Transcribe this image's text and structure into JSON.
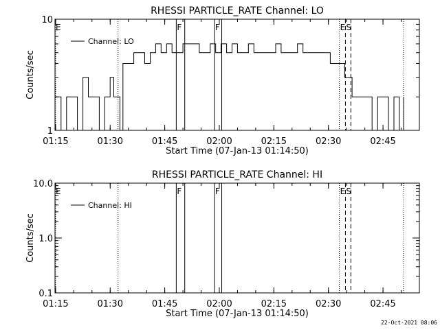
{
  "chart_data": [
    {
      "type": "line",
      "title": "RHESSI PARTICLE_RATE Channel: LO",
      "xlabel": "Start Time (07-Jan-13 01:14:50)",
      "ylabel": "Counts/sec",
      "yscale": "log",
      "ylim": [
        1,
        10
      ],
      "xlim": [
        "01:14:50",
        "02:55:00"
      ],
      "x_ticks": [
        "01:15",
        "01:30",
        "01:45",
        "02:00",
        "02:15",
        "02:30",
        "02:45"
      ],
      "y_ticks": [
        "1",
        "10"
      ],
      "legend": {
        "placement": "top-left",
        "entries": [
          "Channel: LO"
        ]
      },
      "grid": false,
      "markers": [
        {
          "time": "01:15:00",
          "style": "dotted",
          "label": "E"
        },
        {
          "time": "01:32:10",
          "style": "dotted",
          "label": ""
        },
        {
          "time": "01:48:10",
          "style": "solid",
          "label": "F"
        },
        {
          "time": "01:50:30",
          "style": "solid",
          "label": ""
        },
        {
          "time": "01:58:40",
          "style": "solid",
          "label": "F"
        },
        {
          "time": "02:00:40",
          "style": "solid",
          "label": ""
        },
        {
          "time": "02:33:00",
          "style": "dotted",
          "label": "E"
        },
        {
          "time": "02:34:40",
          "style": "dashed",
          "label": "S"
        },
        {
          "time": "02:36:10",
          "style": "dashed",
          "label": ""
        },
        {
          "time": "02:50:40",
          "style": "dotted",
          "label": ""
        }
      ],
      "series": [
        {
          "name": "Channel: LO",
          "x": [
            "01:14:50",
            "01:16:30",
            "01:18:00",
            "01:19:30",
            "01:21:00",
            "01:22:30",
            "01:24:00",
            "01:25:30",
            "01:27:00",
            "01:28:30",
            "01:30:00",
            "01:31:00",
            "01:32:00",
            "01:32:40",
            "01:33:30",
            "01:35:00",
            "01:36:30",
            "01:38:00",
            "01:39:30",
            "01:41:00",
            "01:42:30",
            "01:44:00",
            "01:45:30",
            "01:47:00",
            "01:48:30",
            "01:50:00",
            "01:51:30",
            "01:53:00",
            "01:54:30",
            "01:56:00",
            "01:57:30",
            "01:59:00",
            "02:00:30",
            "02:02:00",
            "02:03:30",
            "02:05:00",
            "02:06:30",
            "02:08:00",
            "02:09:30",
            "02:11:00",
            "02:12:30",
            "02:14:00",
            "02:15:30",
            "02:17:00",
            "02:18:30",
            "02:20:00",
            "02:21:30",
            "02:23:00",
            "02:24:30",
            "02:26:00",
            "02:27:30",
            "02:29:00",
            "02:30:30",
            "02:32:00",
            "02:33:30",
            "02:34:30",
            "02:35:30",
            "02:36:30",
            "02:37:30",
            "02:39:00",
            "02:40:30",
            "02:42:00",
            "02:43:30",
            "02:45:00",
            "02:46:30",
            "02:48:00",
            "02:49:30",
            "02:50:40"
          ],
          "values": [
            2,
            1,
            2,
            2,
            1,
            3,
            2,
            2,
            1,
            2,
            3,
            2,
            2,
            1,
            4,
            4,
            5,
            5,
            4,
            5,
            6,
            5,
            6,
            5,
            5,
            6,
            6,
            6,
            5,
            5,
            6,
            5,
            6,
            5,
            6,
            5,
            5,
            6,
            5,
            5,
            5,
            5,
            6,
            5,
            5,
            5,
            6,
            5,
            5,
            5,
            5,
            5,
            4,
            4,
            4,
            3,
            3,
            2,
            2,
            2,
            2,
            1,
            2,
            2,
            1,
            2,
            1,
            2
          ]
        }
      ]
    },
    {
      "type": "line",
      "title": "RHESSI PARTICLE_RATE Channel: HI",
      "xlabel": "Start Time (07-Jan-13 01:14:50)",
      "ylabel": "Counts/sec",
      "yscale": "log",
      "ylim": [
        0.1,
        10
      ],
      "xlim": [
        "01:14:50",
        "02:55:00"
      ],
      "x_ticks": [
        "01:15",
        "01:30",
        "01:45",
        "02:00",
        "02:15",
        "02:30",
        "02:45"
      ],
      "y_ticks": [
        "0.1",
        "1.0",
        "10.0"
      ],
      "legend": {
        "placement": "top-left",
        "entries": [
          "Channel: HI"
        ]
      },
      "grid": false,
      "markers": [
        {
          "time": "01:15:00",
          "style": "dotted",
          "label": "E"
        },
        {
          "time": "01:32:10",
          "style": "dotted",
          "label": ""
        },
        {
          "time": "01:48:10",
          "style": "solid",
          "label": "F"
        },
        {
          "time": "01:50:30",
          "style": "solid",
          "label": ""
        },
        {
          "time": "01:58:40",
          "style": "solid",
          "label": "F"
        },
        {
          "time": "02:00:40",
          "style": "solid",
          "label": ""
        },
        {
          "time": "02:33:00",
          "style": "dotted",
          "label": "E"
        },
        {
          "time": "02:34:40",
          "style": "dashed",
          "label": "S"
        },
        {
          "time": "02:36:10",
          "style": "dashed",
          "label": ""
        },
        {
          "time": "02:50:40",
          "style": "dotted",
          "label": ""
        }
      ],
      "series": [
        {
          "name": "Channel: HI",
          "x": [],
          "values": []
        }
      ]
    }
  ],
  "footer": {
    "timestamp": "22-Oct-2021 08:06"
  }
}
